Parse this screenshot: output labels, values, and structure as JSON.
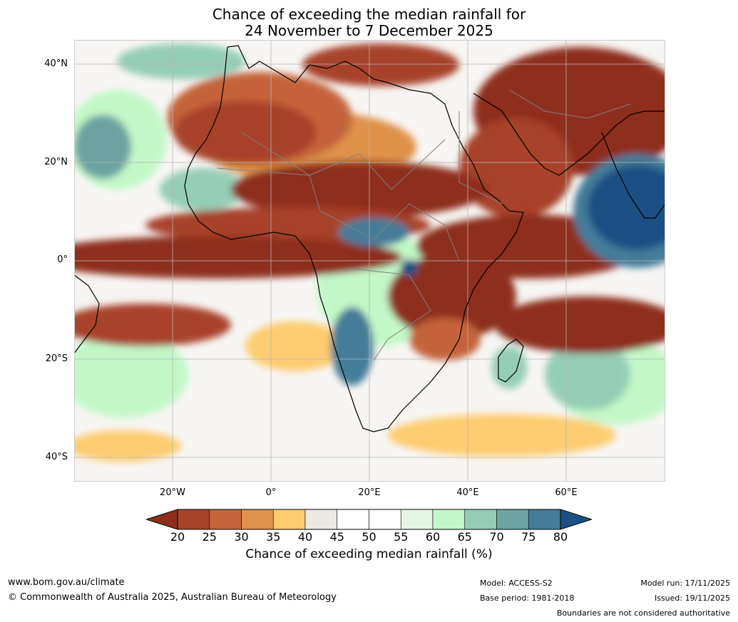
{
  "title": {
    "line1": "Chance of exceeding the median rainfall for",
    "line2": "24 November to 7 December 2025"
  },
  "map": {
    "lat_labels": [
      "40°N",
      "20°N",
      "0°",
      "20°S",
      "40°S"
    ],
    "lon_labels": [
      "20°W",
      "0°",
      "20°E",
      "40°E",
      "60°E"
    ],
    "ocean_background": "#f4f1ee",
    "land_outline": "#000000",
    "country_borders": "#808080",
    "gridline_color": "#aaaaaa"
  },
  "colorbar": {
    "ticks": [
      "20",
      "25",
      "30",
      "35",
      "40",
      "45",
      "50",
      "55",
      "60",
      "65",
      "70",
      "75",
      "80"
    ],
    "colors": [
      "#8e2e1c",
      "#a8432a",
      "#c4643a",
      "#de924a",
      "#fdcc6f",
      "#ece9e5",
      "#ffffff",
      "#ffffff",
      "#e5f5e4",
      "#c2f8c8",
      "#94cdb5",
      "#6ca3a2",
      "#447c99",
      "#1c5083"
    ],
    "label": "Chance of exceeding median rainfall (%)"
  },
  "footer": {
    "website": "www.bom.gov.au/climate",
    "copyright": "© Commonwealth of Australia 2025, Australian Bureau of Meteorology",
    "model": "Model: ACCESS-S2",
    "base_period": "Base period: 1981-2018",
    "model_run": "Model run: 17/11/2025",
    "issued": "Issued: 19/11/2025",
    "disclaimer": "Boundaries are not considered authoritative"
  }
}
